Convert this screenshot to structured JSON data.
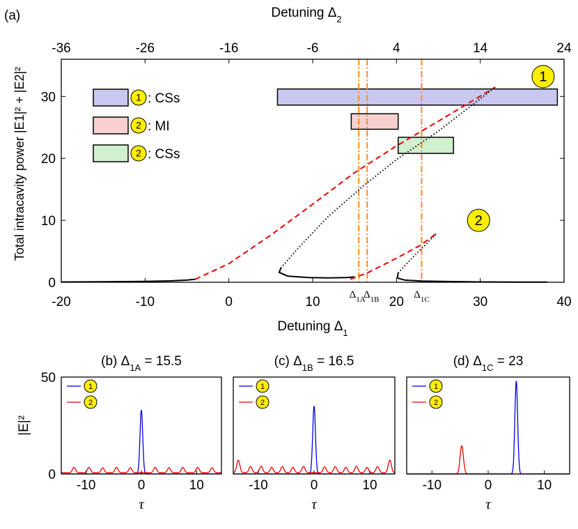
{
  "figure_label": "(a)",
  "colors": {
    "blue": "#0000dd",
    "red": "#ee0000",
    "black": "#000000",
    "orange": "#ff8c1a",
    "yellow": "#ffee00",
    "band_cs1": "#c8c8f0",
    "band_mi2": "#f8d0d0",
    "band_cs2": "#d0f0d0"
  },
  "chart_data": [
    {
      "id": "a",
      "type": "line",
      "title": "",
      "xlabel": "Detuning Δ",
      "xlabel_sub": "1",
      "xlabel_top": "Detuning Δ",
      "xlabel_top_sub": "2",
      "ylabel": "Total intracavity power |E1|² + |E2|²",
      "xlim": [
        -20,
        40
      ],
      "ylim": [
        0,
        36
      ],
      "x_ticks": [
        -20,
        -10,
        0,
        10,
        20,
        30,
        40
      ],
      "x_tick_labels": [
        "-20",
        "-10",
        "0",
        "10",
        "20",
        "30",
        "40"
      ],
      "top_x_ticks": [
        -36,
        -26,
        -16,
        -6,
        4,
        14,
        24
      ],
      "top_x_tick_labels": [
        "-36",
        "-26",
        "-16",
        "-6",
        "4",
        "14",
        "24"
      ],
      "y_ticks": [
        0,
        10,
        20,
        30
      ],
      "y_tick_labels": [
        "0",
        "10",
        "20",
        "30"
      ],
      "legend": [
        {
          "marker": "1",
          "text": ": CSs",
          "band": "cs1"
        },
        {
          "marker": "2",
          "text": ": MI",
          "band": "mi2"
        },
        {
          "marker": "2",
          "text": ": CSs",
          "band": "cs2"
        }
      ],
      "bands": [
        {
          "key": "cs1",
          "x": [
            5.8,
            39.2
          ],
          "y": [
            28.6,
            31.2
          ]
        },
        {
          "key": "mi2",
          "x": [
            14.6,
            20.2
          ],
          "y": [
            24.7,
            27.2
          ]
        },
        {
          "key": "cs2",
          "x": [
            20.2,
            26.8
          ],
          "y": [
            20.8,
            23.4
          ]
        }
      ],
      "vlines": [
        {
          "x": 15.5,
          "label": "Δ",
          "sub": "1A"
        },
        {
          "x": 16.5,
          "label": "Δ",
          "sub": "1B"
        },
        {
          "x": 23,
          "label": "Δ",
          "sub": "1C"
        }
      ],
      "series": [
        {
          "name": "1 stable lower",
          "style": "solid",
          "color": "black",
          "points": [
            [
              -20,
              0.04
            ],
            [
              -15,
              0.08
            ],
            [
              -10,
              0.14
            ],
            [
              -7,
              0.22
            ],
            [
              -5,
              0.35
            ],
            [
              -4,
              0.5
            ]
          ]
        },
        {
          "name": "1 upper",
          "style": "dashed",
          "color": "red",
          "points": [
            [
              -4,
              0.5
            ],
            [
              0,
              3
            ],
            [
              5,
              7.6
            ],
            [
              10,
              12.6
            ],
            [
              15,
              17.7
            ],
            [
              20,
              22
            ],
            [
              25,
              26
            ],
            [
              31.8,
              31.5
            ]
          ]
        },
        {
          "name": "1 middle",
          "style": "dotted",
          "color": "black",
          "points": [
            [
              6.2,
              2.3
            ],
            [
              8,
              5.1
            ],
            [
              10,
              8
            ],
            [
              12,
              10.8
            ],
            [
              16,
              15.5
            ],
            [
              20,
              19.8
            ],
            [
              25,
              24.4
            ],
            [
              31.8,
              31.5
            ]
          ]
        },
        {
          "name": "1 lower stable",
          "style": "solid",
          "color": "black",
          "points": [
            [
              6.2,
              2.3
            ],
            [
              6,
              1.6
            ],
            [
              7,
              1.0
            ],
            [
              9.5,
              0.75
            ],
            [
              12,
              0.7
            ],
            [
              14,
              0.75
            ],
            [
              15,
              0.85
            ]
          ]
        },
        {
          "name": "2 lower",
          "style": "dashed",
          "color": "red",
          "points": [
            [
              14.5,
              0.5
            ],
            [
              16.5,
              1.5
            ],
            [
              19,
              3.2
            ],
            [
              21,
              4.6
            ],
            [
              23,
              6.1
            ],
            [
              24.7,
              7.8
            ]
          ]
        },
        {
          "name": "2 middle",
          "style": "dotted",
          "color": "black",
          "points": [
            [
              20.2,
              1.5
            ],
            [
              21.5,
              3.4
            ],
            [
              22.5,
              4.8
            ],
            [
              23.5,
              6.1
            ],
            [
              24.7,
              7.8
            ]
          ]
        },
        {
          "name": "2 lower stable",
          "style": "solid",
          "color": "black",
          "points": [
            [
              20.2,
              1.5
            ],
            [
              20.1,
              0.7
            ],
            [
              21,
              0.35
            ],
            [
              23,
              0.2
            ],
            [
              26,
              0.12
            ],
            [
              30,
              0.06
            ],
            [
              35,
              0.03
            ],
            [
              38,
              0.02
            ]
          ]
        }
      ],
      "callouts": [
        {
          "text": "1",
          "x": 37.5,
          "y": 33.2
        },
        {
          "text": "2",
          "x": 29.8,
          "y": 10
        }
      ]
    },
    {
      "id": "b",
      "type": "line",
      "title": "(b) Δ",
      "title_sub": "1A",
      "title_tail": " = 15.5",
      "xlabel": "τ",
      "ylabel": "|E|²",
      "xlim": [
        -14.5,
        14.5
      ],
      "ylim": [
        0,
        50
      ],
      "x_ticks": [
        -10,
        0,
        10
      ],
      "x_tick_labels": [
        "-10",
        "0",
        "10"
      ],
      "y_ticks": [
        0,
        50
      ],
      "y_tick_labels": [
        "0",
        "50"
      ],
      "legend": [
        "1",
        "2"
      ],
      "series": [
        {
          "name": "1",
          "color": "blue",
          "peaks": [
            {
              "x": 0,
              "h": 33,
              "w": 0.35
            }
          ]
        },
        {
          "name": "2",
          "color": "red",
          "base": 0.6,
          "peaks": [
            {
              "x": -12.2,
              "h": 2.8,
              "w": 0.4
            },
            {
              "x": -9.5,
              "h": 2.8,
              "w": 0.4
            },
            {
              "x": -7,
              "h": 2.5,
              "w": 0.4
            },
            {
              "x": -4.5,
              "h": 2.8,
              "w": 0.4
            },
            {
              "x": -2,
              "h": 2.6,
              "w": 0.4
            },
            {
              "x": 2.5,
              "h": 2.8,
              "w": 0.4
            },
            {
              "x": 5,
              "h": 2.6,
              "w": 0.4
            },
            {
              "x": 7.5,
              "h": 2.8,
              "w": 0.4
            },
            {
              "x": 10.2,
              "h": 2.8,
              "w": 0.4
            },
            {
              "x": 12.8,
              "h": 2.6,
              "w": 0.4
            }
          ]
        }
      ]
    },
    {
      "id": "c",
      "type": "line",
      "title": "(c) Δ",
      "title_sub": "1B",
      "title_tail": " = 16.5",
      "xlabel": "τ",
      "ylabel": "",
      "xlim": [
        -14.5,
        14.5
      ],
      "ylim": [
        0,
        50
      ],
      "x_ticks": [
        -10,
        0,
        10
      ],
      "x_tick_labels": [
        "-10",
        "0",
        "10"
      ],
      "y_ticks": [
        0,
        50
      ],
      "y_tick_labels": [],
      "legend": [
        "1",
        "2"
      ],
      "series": [
        {
          "name": "1",
          "color": "blue",
          "peaks": [
            {
              "x": 0,
              "h": 35,
              "w": 0.35
            }
          ]
        },
        {
          "name": "2",
          "color": "red",
          "base": 0.6,
          "peaks": [
            {
              "x": -13.6,
              "h": 6.5,
              "w": 0.4
            },
            {
              "x": -11.4,
              "h": 3.2,
              "w": 0.4
            },
            {
              "x": -9.5,
              "h": 3.4,
              "w": 0.4
            },
            {
              "x": -7.6,
              "h": 2.8,
              "w": 0.4
            },
            {
              "x": -5.7,
              "h": 3.2,
              "w": 0.4
            },
            {
              "x": -3.8,
              "h": 2.8,
              "w": 0.4
            },
            {
              "x": -1.9,
              "h": 3.2,
              "w": 0.4
            },
            {
              "x": 1.9,
              "h": 3.0,
              "w": 0.4
            },
            {
              "x": 3.8,
              "h": 3.2,
              "w": 0.4
            },
            {
              "x": 5.7,
              "h": 2.8,
              "w": 0.4
            },
            {
              "x": 7.6,
              "h": 3.4,
              "w": 0.4
            },
            {
              "x": 9.5,
              "h": 2.8,
              "w": 0.4
            },
            {
              "x": 11.4,
              "h": 3.2,
              "w": 0.4
            },
            {
              "x": 13.6,
              "h": 6.5,
              "w": 0.4
            }
          ]
        }
      ]
    },
    {
      "id": "d",
      "type": "line",
      "title": "(d) Δ",
      "title_sub": "1C",
      "title_tail": " = 23",
      "xlabel": "τ",
      "ylabel": "",
      "xlim": [
        -14.5,
        14.5
      ],
      "ylim": [
        0,
        50
      ],
      "x_ticks": [
        -10,
        0,
        10
      ],
      "x_tick_labels": [
        "-10",
        "0",
        "10"
      ],
      "y_ticks": [
        0,
        50
      ],
      "y_tick_labels": [],
      "legend": [
        "1",
        "2"
      ],
      "series": [
        {
          "name": "1",
          "color": "blue",
          "peaks": [
            {
              "x": 5,
              "h": 48,
              "w": 0.35
            }
          ]
        },
        {
          "name": "2",
          "color": "red",
          "base": 0,
          "peaks": [
            {
              "x": -4.7,
              "h": 14.5,
              "w": 0.42
            }
          ]
        }
      ]
    }
  ]
}
